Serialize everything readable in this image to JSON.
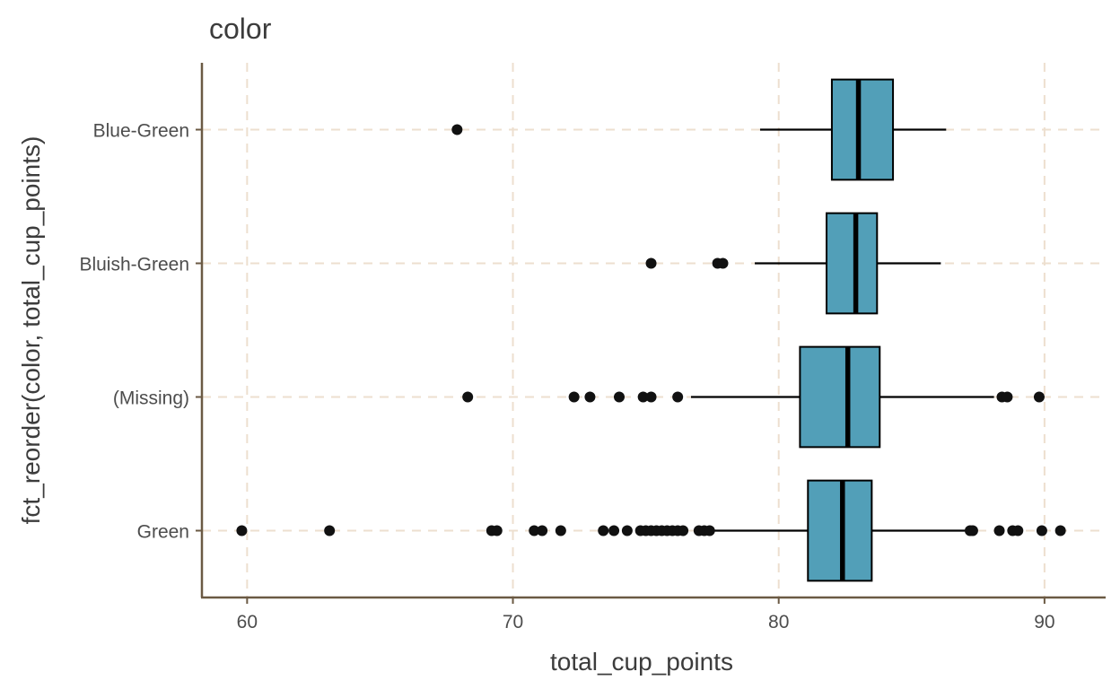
{
  "chart_data": {
    "type": "boxplot",
    "orientation": "horizontal",
    "title": "color",
    "xlabel": "total_cup_points",
    "ylabel": "fct_reorder(color, total_cup_points)",
    "xlim": [
      58.3,
      92.3
    ],
    "x_ticks": [
      60,
      70,
      80,
      90
    ],
    "grid": "dashed major gridlines",
    "box_fill": "#529fb8",
    "grid_color": "#eddfcf",
    "axis_color": "#6b5a44",
    "categories": [
      "Blue-Green",
      "Bluish-Green",
      "(Missing)",
      "Green"
    ],
    "boxes": [
      {
        "category": "Blue-Green",
        "whisker_low": 79.3,
        "q1": 82.0,
        "median": 83.0,
        "q3": 84.3,
        "whisker_high": 86.3,
        "outliers": [
          67.9
        ]
      },
      {
        "category": "Bluish-Green",
        "whisker_low": 79.1,
        "q1": 81.8,
        "median": 82.9,
        "q3": 83.7,
        "whisker_high": 86.1,
        "outliers": [
          75.2,
          77.7,
          77.9
        ]
      },
      {
        "category": "(Missing)",
        "whisker_low": 76.7,
        "q1": 80.8,
        "median": 82.6,
        "q3": 83.8,
        "whisker_high": 88.1,
        "outliers": [
          68.3,
          72.3,
          72.9,
          74.0,
          74.9,
          75.2,
          76.2,
          88.4,
          88.6,
          89.8
        ]
      },
      {
        "category": "Green",
        "whisker_low": 77.5,
        "q1": 81.1,
        "median": 82.4,
        "q3": 83.5,
        "whisker_high": 87.0,
        "outliers": [
          59.8,
          63.1,
          69.2,
          69.4,
          70.8,
          71.1,
          71.8,
          73.4,
          73.8,
          74.3,
          74.8,
          75.0,
          75.2,
          75.4,
          75.6,
          75.8,
          76.0,
          76.2,
          76.4,
          77.0,
          77.2,
          77.4,
          87.2,
          87.3,
          88.3,
          88.8,
          89.0,
          89.9,
          90.6
        ]
      }
    ]
  }
}
